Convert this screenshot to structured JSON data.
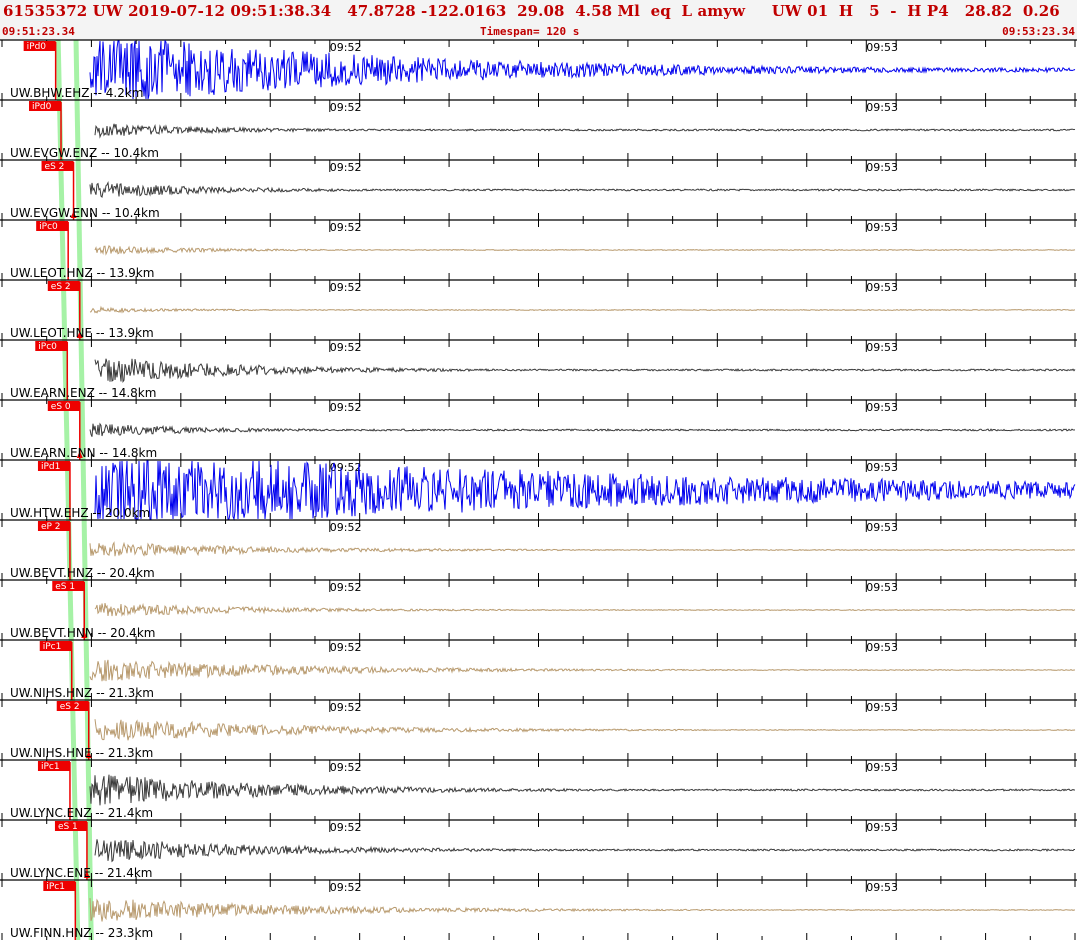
{
  "header": {
    "title": "61535372 UW 2019-07-12 09:51:38.34   47.8728 -122.0163  29.08  4.58 Ml  eq  L amyw     UW 01  H   5  -  H P4   28.82  0.26",
    "time_start": "09:51:23.34",
    "time_end": "09:53:23.34",
    "timespan": "Timespan= 120 s"
  },
  "chart_data": {
    "type": "line",
    "x_start": "09:51:23.34",
    "x_end": "09:53:23.34",
    "timespan_s": 120,
    "time_labels": [
      {
        "t": 36.66,
        "label": "09:52"
      },
      {
        "t": 96.66,
        "label": "09:53"
      }
    ],
    "colors": {
      "blue": "#0000ee",
      "dark": "#3a3a3a",
      "tan": "#b89a6e",
      "pick": "#ee0000",
      "band": "#88ee88"
    },
    "traces": [
      {
        "label": "UW.BHW.EHZ -- 4.2km",
        "color": "blue",
        "pick": "iPd0",
        "pick_t": 6.0,
        "amp": 1.0,
        "decay": 0.03,
        "noise": 0.05
      },
      {
        "label": "UW.EVGW.ENZ -- 10.4km",
        "color": "dark",
        "pick": "iPd0",
        "pick_t": 6.6,
        "amp": 0.22,
        "decay": 0.07,
        "noise": 0.02
      },
      {
        "label": "UW.EVGW.ENN -- 10.4km",
        "color": "dark",
        "pick": "eS 2",
        "pick_t": 8.0,
        "amp": 0.22,
        "decay": 0.07,
        "noise": 0.02
      },
      {
        "label": "UW.LEOT.HNZ -- 13.9km",
        "color": "tan",
        "pick": "iPc0",
        "pick_t": 7.4,
        "amp": 0.14,
        "decay": 0.08,
        "noise": 0.01
      },
      {
        "label": "UW.LEOT.HNE -- 13.9km",
        "color": "tan",
        "pick": "eS 2",
        "pick_t": 8.7,
        "amp": 0.08,
        "decay": 0.09,
        "noise": 0.01
      },
      {
        "label": "UW.EARN.ENZ -- 14.8km",
        "color": "dark",
        "pick": "iPc0",
        "pick_t": 7.3,
        "amp": 0.4,
        "decay": 0.06,
        "noise": 0.02
      },
      {
        "label": "UW.EARN.ENN -- 14.8km",
        "color": "dark",
        "pick": "eS 0",
        "pick_t": 8.7,
        "amp": 0.18,
        "decay": 0.08,
        "noise": 0.02
      },
      {
        "label": "UW.HTW.EHZ -- 20.0km",
        "color": "blue",
        "pick": "iPd1",
        "pick_t": 7.6,
        "amp": 1.0,
        "decay": 0.015,
        "noise": 0.05
      },
      {
        "label": "UW.BEVT.HNZ -- 20.4km",
        "color": "tan",
        "pick": "eP 2",
        "pick_t": 7.6,
        "amp": 0.22,
        "decay": 0.05,
        "noise": 0.01
      },
      {
        "label": "UW.BEVT.HNN -- 20.4km",
        "color": "tan",
        "pick": "eS 1",
        "pick_t": 9.2,
        "amp": 0.18,
        "decay": 0.055,
        "noise": 0.01
      },
      {
        "label": "UW.NIHS.HNZ -- 21.3km",
        "color": "tan",
        "pick": "iPc1",
        "pick_t": 7.8,
        "amp": 0.32,
        "decay": 0.045,
        "noise": 0.01
      },
      {
        "label": "UW.NIHS.HNE -- 21.3km",
        "color": "tan",
        "pick": "eS 2",
        "pick_t": 9.7,
        "amp": 0.3,
        "decay": 0.045,
        "noise": 0.01
      },
      {
        "label": "UW.LYNC.ENZ -- 21.4km",
        "color": "dark",
        "pick": "iPc1",
        "pick_t": 7.6,
        "amp": 0.45,
        "decay": 0.05,
        "noise": 0.02
      },
      {
        "label": "UW.LYNC.ENE -- 21.4km",
        "color": "dark",
        "pick": "eS 1",
        "pick_t": 9.5,
        "amp": 0.3,
        "decay": 0.05,
        "noise": 0.02
      },
      {
        "label": "UW.FINN.HNZ -- 23.3km",
        "color": "tan",
        "pick": "iPc1",
        "pick_t": 8.2,
        "amp": 0.32,
        "decay": 0.045,
        "noise": 0.01
      }
    ]
  }
}
